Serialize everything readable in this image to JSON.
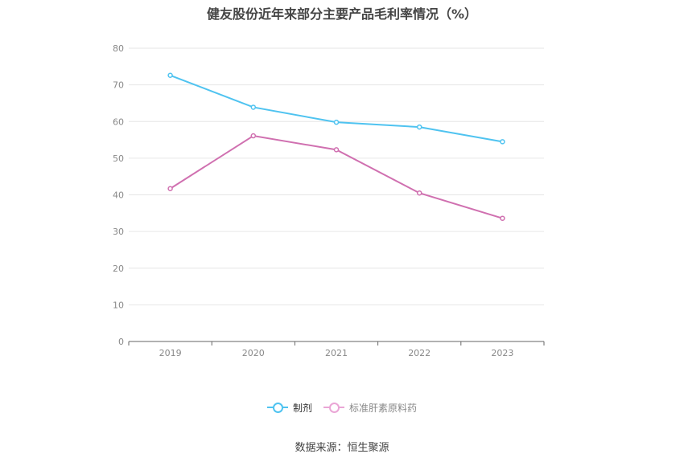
{
  "chart_data": {
    "type": "line",
    "title": "健友股份近年来部分主要产品毛利率情况（%）",
    "categories": [
      "2019",
      "2020",
      "2021",
      "2022",
      "2023"
    ],
    "series": [
      {
        "name": "制剂",
        "color": "#4fc3f0",
        "values": [
          72.6,
          63.9,
          59.8,
          58.5,
          54.5
        ]
      },
      {
        "name": "标准肝素原料药",
        "color": "#d070b0",
        "values": [
          41.7,
          56.1,
          52.3,
          40.5,
          33.6
        ]
      }
    ],
    "y_ticks": [
      0,
      10,
      20,
      30,
      40,
      50,
      60,
      70,
      80
    ],
    "ylim": [
      0,
      80
    ],
    "grid": true,
    "legend": "bottom-center"
  },
  "source": "数据来源：恒生聚源"
}
